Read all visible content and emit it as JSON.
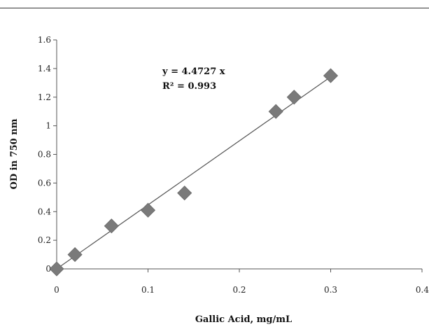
{
  "chart_data": {
    "type": "scatter",
    "xlabel": "Gallic Acid, mg/mL",
    "ylabel": "OD in 750 nm",
    "xlim": [
      0,
      0.4
    ],
    "ylim": [
      0,
      1.6
    ],
    "x_ticks": [
      "0",
      "0.1",
      "0.2",
      "0.3",
      "0.4"
    ],
    "y_ticks": [
      "0",
      "0.2",
      "0.4",
      "0.6",
      "0.8",
      "1",
      "1.2",
      "1.4",
      "1.6"
    ],
    "grid": false,
    "legend": "none",
    "series": [
      {
        "marker": "diamond",
        "color": "#7a7a7a",
        "x": [
          0,
          0.02,
          0.06,
          0.1,
          0.14,
          0.24,
          0.26,
          0.3
        ],
        "y": [
          0,
          0.1,
          0.3,
          0.41,
          0.53,
          1.1,
          1.2,
          1.35
        ]
      }
    ],
    "trendline": {
      "slope": 4.4727,
      "intercept": 0,
      "equation": "y = 4.4727 x",
      "r_squared_label": "R² = 0.993",
      "color": "#555555"
    }
  }
}
